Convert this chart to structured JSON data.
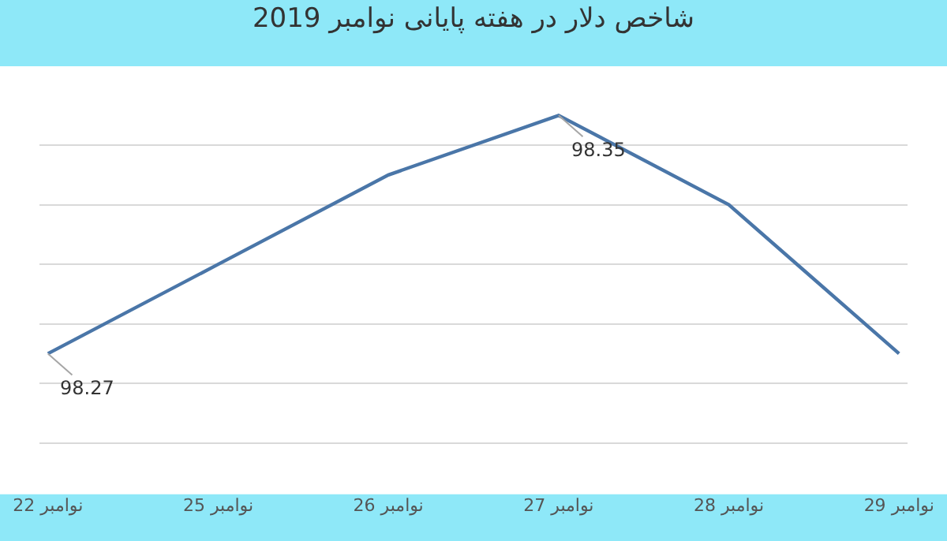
{
  "chart_data": {
    "type": "line",
    "title": "شاخص دلار در هفته پایانی نوامبر 2019",
    "categories": [
      "22 نوامبر",
      "25 نوامبر",
      "26 نوامبر",
      "27 نوامبر",
      "28 نوامبر",
      "29 نوامبر"
    ],
    "series": [
      {
        "color": "#4a76a8",
        "values": [
          98.27,
          98.3,
          98.33,
          98.35,
          98.32,
          98.27
        ],
        "value_labels": [
          "98.27",
          null,
          null,
          "98.35",
          null,
          null
        ]
      }
    ],
    "yticks": [
      {
        "value": 98.24,
        "label": null
      },
      {
        "value": 98.26,
        "label": null
      },
      {
        "value": 98.28,
        "label": null
      },
      {
        "value": 98.3,
        "label": null
      },
      {
        "value": 98.32,
        "label": null
      },
      {
        "value": 98.34,
        "label": null
      }
    ],
    "grid": "y",
    "tick_labels": "x",
    "marker": "none"
  }
}
